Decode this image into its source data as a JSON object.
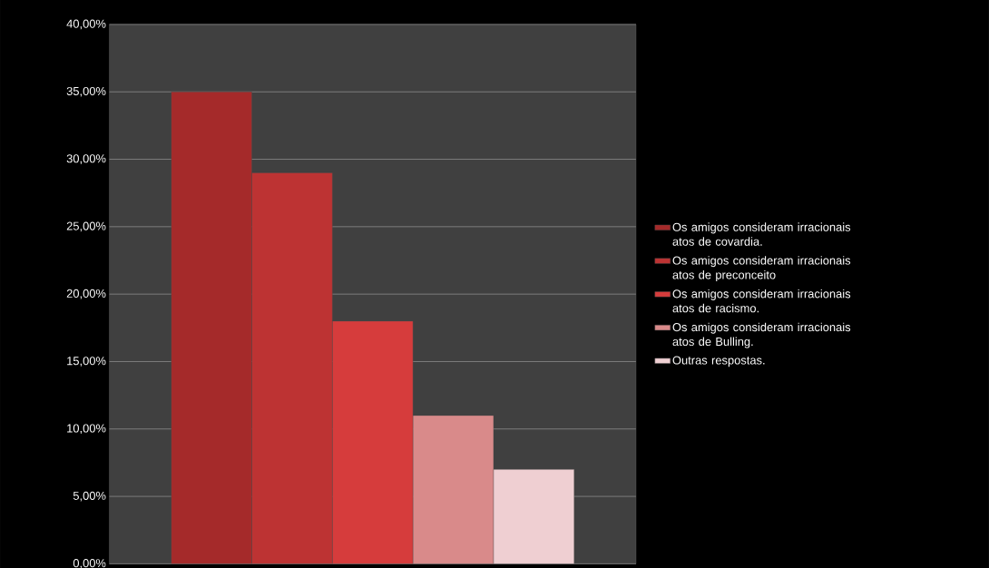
{
  "chart_data": {
    "type": "bar",
    "categories": [
      null
    ],
    "series": [
      {
        "name": "Os amigos consideram irracionais atos de covardia.",
        "color": "#a52a2a",
        "values": [
          35
        ]
      },
      {
        "name": "Os amigos consideram irracionais atos de preconceito",
        "color": "#bd3333",
        "values": [
          29
        ]
      },
      {
        "name": "Os amigos consideram irracionais atos de racismo.",
        "color": "#d63c3c",
        "values": [
          18
        ]
      },
      {
        "name": "Os amigos consideram irracionais atos de Bulling.",
        "color": "#d98a8a",
        "values": [
          11
        ]
      },
      {
        "name": "Outras respostas.",
        "color": "#efcfd2",
        "values": [
          7
        ]
      }
    ],
    "ylim": [
      0,
      40
    ],
    "yticks": [
      {
        "value": 0,
        "label": "0,00%"
      },
      {
        "value": 5,
        "label": "5,00%"
      },
      {
        "value": 10,
        "label": "10,00%"
      },
      {
        "value": 15,
        "label": "15,00%"
      },
      {
        "value": 20,
        "label": "20,00%"
      },
      {
        "value": 25,
        "label": "25,00%"
      },
      {
        "value": 30,
        "label": "30,00%"
      },
      {
        "value": 35,
        "label": "35,00%"
      },
      {
        "value": 40,
        "label": "40,00%"
      }
    ],
    "grid": "y",
    "legend": "right"
  }
}
